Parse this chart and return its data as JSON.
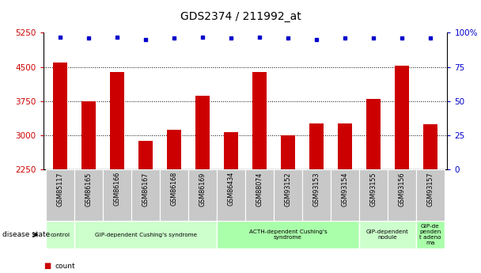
{
  "title": "GDS2374 / 211992_at",
  "samples": [
    "GSM85117",
    "GSM86165",
    "GSM86166",
    "GSM86167",
    "GSM86168",
    "GSM86169",
    "GSM86434",
    "GSM88074",
    "GSM93152",
    "GSM93153",
    "GSM93154",
    "GSM93155",
    "GSM93156",
    "GSM93157"
  ],
  "counts": [
    4590,
    3740,
    4390,
    2870,
    3110,
    3870,
    3060,
    4390,
    3000,
    3250,
    3260,
    3800,
    4520,
    3240
  ],
  "percentile": [
    97,
    96,
    97,
    95,
    96,
    97,
    96,
    97,
    96,
    95,
    96,
    96,
    96,
    96
  ],
  "ylim_left": [
    2250,
    5250
  ],
  "ylim_right": [
    0,
    100
  ],
  "yticks_left": [
    2250,
    3000,
    3750,
    4500,
    5250
  ],
  "yticks_right": [
    0,
    25,
    50,
    75,
    100
  ],
  "bar_color": "#cc0000",
  "dot_color": "#0000cc",
  "disease_groups": [
    {
      "label": "control",
      "start": 0,
      "end": 0,
      "color": "#ccffcc"
    },
    {
      "label": "GIP-dependent Cushing's syndrome",
      "start": 1,
      "end": 5,
      "color": "#ccffcc"
    },
    {
      "label": "ACTH-dependent Cushing's\nsyndrome",
      "start": 6,
      "end": 10,
      "color": "#aaffaa"
    },
    {
      "label": "GIP-dependent\nnodule",
      "start": 11,
      "end": 12,
      "color": "#ccffcc"
    },
    {
      "label": "GIP-de\npenden\nt adeno\nma",
      "start": 13,
      "end": 13,
      "color": "#aaffaa"
    }
  ],
  "grid_color": "#000000",
  "bg_color": "#ffffff",
  "tick_label_color_left": "#cc0000",
  "tick_label_color_right": "#0000cc",
  "title_fontsize": 10,
  "tick_fontsize": 7.5,
  "bar_width": 0.5,
  "plot_bg": "#ffffff",
  "xlabel_area_bg": "#d0d0d0"
}
